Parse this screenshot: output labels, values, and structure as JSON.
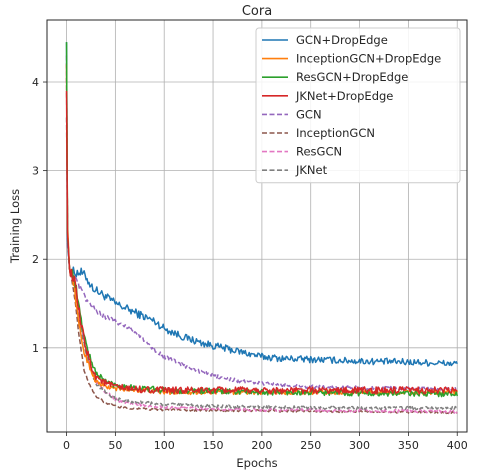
{
  "chart_data": {
    "type": "line",
    "title": "Cora",
    "xlabel": "Epochs",
    "ylabel": "Training Loss",
    "xlim": [
      -20,
      410
    ],
    "ylim": [
      0.05,
      4.7
    ],
    "xticks": [
      0,
      50,
      100,
      150,
      200,
      250,
      300,
      350,
      400
    ],
    "yticks": [
      1,
      2,
      3,
      4
    ],
    "grid": true,
    "legend_position": "top-right",
    "series": [
      {
        "name": "GCN+DropEdge",
        "color": "#1f77b4",
        "dash": false,
        "noise": 0.025,
        "points": [
          [
            0,
            4.45
          ],
          [
            1,
            2.2
          ],
          [
            3,
            1.9
          ],
          [
            8,
            1.85
          ],
          [
            15,
            1.85
          ],
          [
            20,
            1.8
          ],
          [
            25,
            1.7
          ],
          [
            30,
            1.65
          ],
          [
            40,
            1.58
          ],
          [
            50,
            1.5
          ],
          [
            60,
            1.45
          ],
          [
            70,
            1.4
          ],
          [
            80,
            1.35
          ],
          [
            90,
            1.3
          ],
          [
            100,
            1.22
          ],
          [
            120,
            1.12
          ],
          [
            140,
            1.05
          ],
          [
            160,
            1.0
          ],
          [
            180,
            0.95
          ],
          [
            200,
            0.9
          ],
          [
            220,
            0.88
          ],
          [
            250,
            0.87
          ],
          [
            300,
            0.85
          ],
          [
            350,
            0.84
          ],
          [
            400,
            0.82
          ]
        ]
      },
      {
        "name": "InceptionGCN+DropEdge",
        "color": "#ff7f0e",
        "dash": false,
        "noise": 0.02,
        "points": [
          [
            0,
            4.2
          ],
          [
            1,
            2.4
          ],
          [
            3,
            1.9
          ],
          [
            8,
            1.7
          ],
          [
            12,
            1.3
          ],
          [
            18,
            0.95
          ],
          [
            25,
            0.75
          ],
          [
            30,
            0.62
          ],
          [
            40,
            0.56
          ],
          [
            50,
            0.54
          ],
          [
            60,
            0.53
          ],
          [
            80,
            0.52
          ],
          [
            100,
            0.5
          ],
          [
            150,
            0.5
          ],
          [
            200,
            0.5
          ],
          [
            300,
            0.5
          ],
          [
            400,
            0.5
          ]
        ]
      },
      {
        "name": "ResGCN+DropEdge",
        "color": "#2ca02c",
        "dash": false,
        "noise": 0.025,
        "points": [
          [
            0,
            4.45
          ],
          [
            1,
            2.3
          ],
          [
            3,
            1.9
          ],
          [
            8,
            1.8
          ],
          [
            15,
            1.3
          ],
          [
            20,
            1.05
          ],
          [
            25,
            0.85
          ],
          [
            30,
            0.72
          ],
          [
            40,
            0.62
          ],
          [
            50,
            0.58
          ],
          [
            60,
            0.56
          ],
          [
            80,
            0.54
          ],
          [
            100,
            0.52
          ],
          [
            150,
            0.51
          ],
          [
            200,
            0.5
          ],
          [
            300,
            0.49
          ],
          [
            400,
            0.48
          ]
        ]
      },
      {
        "name": "JKNet+DropEdge",
        "color": "#d62728",
        "dash": false,
        "noise": 0.03,
        "points": [
          [
            0,
            3.9
          ],
          [
            1,
            2.3
          ],
          [
            3,
            1.9
          ],
          [
            8,
            1.75
          ],
          [
            15,
            1.25
          ],
          [
            20,
            1.0
          ],
          [
            25,
            0.8
          ],
          [
            30,
            0.68
          ],
          [
            40,
            0.6
          ],
          [
            50,
            0.56
          ],
          [
            60,
            0.54
          ],
          [
            80,
            0.53
          ],
          [
            100,
            0.52
          ],
          [
            150,
            0.52
          ],
          [
            200,
            0.52
          ],
          [
            300,
            0.52
          ],
          [
            400,
            0.52
          ]
        ]
      },
      {
        "name": "GCN",
        "color": "#9467bd",
        "dash": true,
        "noise": 0.015,
        "points": [
          [
            0,
            4.3
          ],
          [
            1,
            2.15
          ],
          [
            3,
            1.9
          ],
          [
            8,
            1.8
          ],
          [
            15,
            1.65
          ],
          [
            20,
            1.55
          ],
          [
            25,
            1.48
          ],
          [
            30,
            1.42
          ],
          [
            40,
            1.35
          ],
          [
            50,
            1.3
          ],
          [
            60,
            1.25
          ],
          [
            70,
            1.18
          ],
          [
            80,
            1.08
          ],
          [
            90,
            0.98
          ],
          [
            100,
            0.9
          ],
          [
            120,
            0.8
          ],
          [
            140,
            0.72
          ],
          [
            160,
            0.66
          ],
          [
            180,
            0.62
          ],
          [
            200,
            0.6
          ],
          [
            250,
            0.56
          ],
          [
            300,
            0.55
          ],
          [
            350,
            0.54
          ],
          [
            400,
            0.53
          ]
        ]
      },
      {
        "name": "InceptionGCN",
        "color": "#8c564b",
        "dash": true,
        "noise": 0.01,
        "points": [
          [
            0,
            4.05
          ],
          [
            1,
            2.3
          ],
          [
            3,
            1.9
          ],
          [
            8,
            1.6
          ],
          [
            12,
            1.2
          ],
          [
            18,
            0.75
          ],
          [
            25,
            0.55
          ],
          [
            30,
            0.45
          ],
          [
            40,
            0.38
          ],
          [
            50,
            0.34
          ],
          [
            60,
            0.32
          ],
          [
            80,
            0.31
          ],
          [
            100,
            0.3
          ],
          [
            200,
            0.29
          ],
          [
            300,
            0.28
          ],
          [
            400,
            0.27
          ]
        ]
      },
      {
        "name": "ResGCN",
        "color": "#e377c2",
        "dash": true,
        "noise": 0.015,
        "points": [
          [
            0,
            4.2
          ],
          [
            1,
            2.2
          ],
          [
            3,
            1.9
          ],
          [
            8,
            1.75
          ],
          [
            15,
            1.25
          ],
          [
            20,
            0.98
          ],
          [
            25,
            0.78
          ],
          [
            30,
            0.62
          ],
          [
            40,
            0.5
          ],
          [
            50,
            0.42
          ],
          [
            60,
            0.38
          ],
          [
            80,
            0.35
          ],
          [
            100,
            0.33
          ],
          [
            150,
            0.31
          ],
          [
            200,
            0.3
          ],
          [
            300,
            0.29
          ],
          [
            400,
            0.28
          ]
        ]
      },
      {
        "name": "JKNet",
        "color": "#7f7f7f",
        "dash": true,
        "noise": 0.015,
        "points": [
          [
            0,
            3.6
          ],
          [
            1,
            2.25
          ],
          [
            3,
            1.9
          ],
          [
            8,
            1.75
          ],
          [
            15,
            1.2
          ],
          [
            20,
            0.95
          ],
          [
            25,
            0.75
          ],
          [
            30,
            0.6
          ],
          [
            40,
            0.5
          ],
          [
            50,
            0.43
          ],
          [
            60,
            0.4
          ],
          [
            80,
            0.38
          ],
          [
            100,
            0.36
          ],
          [
            150,
            0.34
          ],
          [
            200,
            0.33
          ],
          [
            300,
            0.32
          ],
          [
            400,
            0.32
          ]
        ]
      }
    ]
  }
}
